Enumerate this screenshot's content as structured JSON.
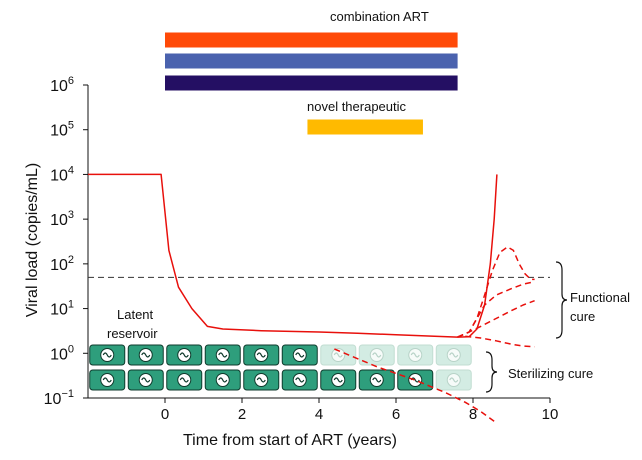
{
  "chart_data": {
    "type": "line",
    "xlabel": "Time from start of ART (years)",
    "ylabel": "Viral load (copies/mL)",
    "xlim": [
      -2,
      10
    ],
    "ylim_log10": [
      -1,
      6
    ],
    "y_scale": "log",
    "x_ticks": [
      "0",
      "2",
      "4",
      "6",
      "8",
      "10"
    ],
    "y_ticks": [
      {
        "base": "10",
        "exp": "6"
      },
      {
        "base": "10",
        "exp": "5"
      },
      {
        "base": "10",
        "exp": "4"
      },
      {
        "base": "10",
        "exp": "3"
      },
      {
        "base": "10",
        "exp": "2"
      },
      {
        "base": "10",
        "exp": "1"
      },
      {
        "base": "10",
        "exp": "0"
      },
      {
        "base": "10",
        "exp": "−1"
      }
    ],
    "treatment_bars": {
      "combination_label": "combination ART",
      "novel_label": "novel therapeutic",
      "combination": {
        "x_start": 0,
        "x_end": 7.6,
        "colors": [
          "#ff4a08",
          "#4a62ae",
          "#240f63"
        ]
      },
      "novel": {
        "x_start": 3.7,
        "x_end": 6.7,
        "color": "#ffba00"
      }
    },
    "threshold": {
      "y": 50,
      "style": "dashed",
      "color": "#333333"
    },
    "series": [
      {
        "style": "solid",
        "color": "#e8100c",
        "x": [
          -2,
          -0.1,
          0.1,
          0.35,
          0.7,
          1.1,
          1.5,
          2.5,
          4,
          5,
          6,
          7,
          7.6,
          7.9,
          8.1,
          8.3,
          8.45,
          8.55,
          8.62
        ],
        "y": [
          10000,
          10000,
          200,
          30,
          10,
          4,
          3.5,
          3.2,
          3,
          2.8,
          2.6,
          2.4,
          2.3,
          2.35,
          3.5,
          12,
          100,
          1000,
          10000
        ]
      },
      {
        "style": "dashed",
        "color": "#e8100c",
        "x": [
          7.6,
          7.9,
          8.1,
          8.3,
          8.5,
          8.7,
          8.9,
          9.05,
          9.2,
          9.35,
          9.5,
          9.6
        ],
        "y": [
          2.3,
          3,
          6,
          20,
          70,
          180,
          240,
          200,
          100,
          60,
          45,
          45
        ]
      },
      {
        "style": "dashed",
        "color": "#e8100c",
        "x": [
          7.6,
          7.9,
          8.1,
          8.3,
          8.6,
          9,
          9.3,
          9.6
        ],
        "y": [
          2.3,
          3,
          6,
          12,
          20,
          28,
          35,
          40
        ]
      },
      {
        "style": "dashed",
        "color": "#e8100c",
        "x": [
          7.6,
          7.9,
          8.2,
          8.6,
          9,
          9.3,
          9.6
        ],
        "y": [
          2.3,
          3,
          4,
          6,
          9,
          12,
          15
        ]
      },
      {
        "style": "dashed",
        "color": "#e8100c",
        "x": [
          7.8,
          8.2,
          8.6,
          9.0,
          9.3,
          9.6
        ],
        "y": [
          2.4,
          2.2,
          1.9,
          1.6,
          1.45,
          1.4
        ]
      },
      {
        "style": "dashed",
        "color": "#e8100c",
        "x": [
          4.4,
          5.5,
          6.5,
          7.3,
          7.8,
          8.2,
          8.6
        ],
        "y": [
          1.25,
          0.5,
          0.25,
          0.13,
          0.08,
          0.05,
          0.028
        ]
      }
    ],
    "reservoir_cells": {
      "label_line1": "Latent",
      "label_line2": "reservoir",
      "top_row_x": [
        -1.5,
        -0.5,
        0.5,
        1.5,
        2.5,
        3.5,
        4.5,
        5.5,
        6.5,
        7.5
      ],
      "bottom_row_x": [
        -1.5,
        -0.5,
        0.5,
        1.5,
        2.5,
        3.5,
        4.5,
        5.5,
        6.5,
        7.5
      ],
      "top_row_active": [
        true,
        true,
        true,
        true,
        true,
        true,
        false,
        false,
        false,
        false
      ],
      "bottom_row_active": [
        true,
        true,
        true,
        true,
        true,
        true,
        true,
        true,
        true,
        false
      ],
      "active_fill": "#2e9e7c",
      "faded_fill": "#d3ece3"
    },
    "annotations": {
      "functional_cure": [
        "Functional",
        "cure"
      ],
      "sterilizing_cure": "Sterilizing cure"
    }
  }
}
